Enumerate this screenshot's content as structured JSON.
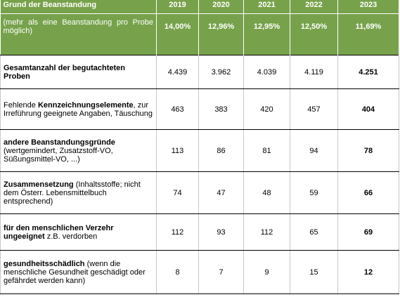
{
  "table": {
    "header": [
      "Grund der Beanstandung",
      "2019",
      "2020",
      "2021",
      "2022",
      "2023"
    ],
    "subheader": {
      "label": "(mehr als eine Beanstandung pro Probe möglich)",
      "values": [
        "14,00%",
        "12,96%",
        "12,95%",
        "12,50%",
        "11,69%"
      ]
    },
    "rows": [
      {
        "label": [
          {
            "text": "Gesamtanzahl der begutachteten Proben",
            "bold": true
          }
        ],
        "values": [
          "4.439",
          "3.962",
          "4.039",
          "4.119",
          "4.251"
        ]
      },
      {
        "label": [
          {
            "text": "Fehlende ",
            "bold": false
          },
          {
            "text": "Kennzeichnungselemente",
            "bold": true
          },
          {
            "text": ", zur Irreführung geeignete Angaben, Täuschung",
            "bold": false
          }
        ],
        "values": [
          "463",
          "383",
          "420",
          "457",
          "404"
        ]
      },
      {
        "label": [
          {
            "text": "andere Beanstandungsgründe",
            "bold": true
          },
          {
            "text": " (wertgemindert, Zusatzstoff-VO, Süßungsmittel-VO, ...)",
            "bold": false
          }
        ],
        "values": [
          "113",
          "86",
          "81",
          "94",
          "78"
        ]
      },
      {
        "label": [
          {
            "text": "Zusammensetzung",
            "bold": true
          },
          {
            "text": " (Inhaltsstoffe; nicht dem Österr. Lebensmittelbuch entsprechend)",
            "bold": false
          }
        ],
        "values": [
          "74",
          "47",
          "48",
          "59",
          "66"
        ]
      },
      {
        "label": [
          {
            "text": "für den menschlichen Verzehr ungeeignet",
            "bold": true
          },
          {
            "text": " z.B. verdorben",
            "bold": false
          }
        ],
        "values": [
          "112",
          "93",
          "112",
          "65",
          "69"
        ]
      },
      {
        "label": [
          {
            "text": "gesundheitsschädlich",
            "bold": true
          },
          {
            "text": " (wenn die menschliche Gesundheit geschädigt oder gefährdet werden kann)",
            "bold": false
          }
        ],
        "values": [
          "8",
          "7",
          "9",
          "15",
          "12"
        ]
      }
    ]
  }
}
